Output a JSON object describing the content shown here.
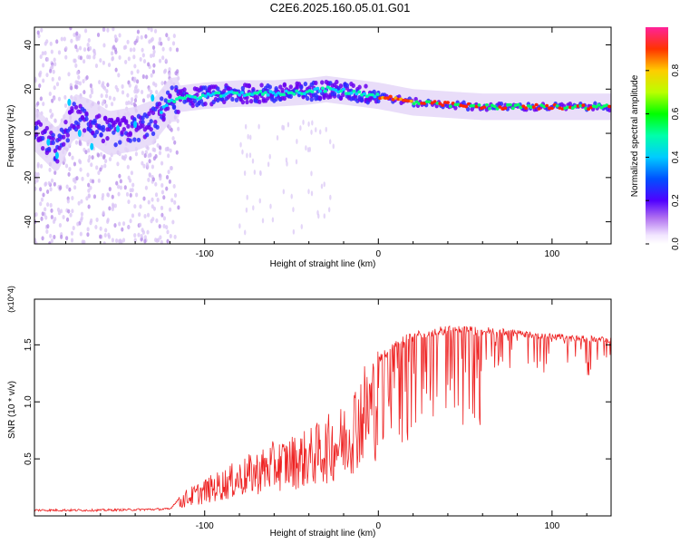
{
  "title": "C2E6.2025.160.05.01.G01",
  "chart_data": [
    {
      "type": "heatmap",
      "xlabel": "Height of straight line (km)",
      "ylabel": "Frequency (Hz)",
      "xlim": [
        -198,
        134
      ],
      "ylim": [
        -50,
        48
      ],
      "x_ticks": [
        -100,
        0,
        100
      ],
      "y_ticks": [
        -40,
        -20,
        0,
        20,
        40
      ],
      "colorbar": {
        "label": "Normalized spectral amplitude",
        "range": [
          0,
          1
        ],
        "ticks": [
          0.0,
          0.2,
          0.4,
          0.6,
          0.8
        ],
        "colors": [
          "#ffffff",
          "#ffffff",
          "#e6d8f5",
          "#c8aaee",
          "#8800ee",
          "#2200ff",
          "#00aaff",
          "#00ffcc",
          "#00ff00",
          "#ccff00",
          "#ffcc00",
          "#ff6600",
          "#ff0000",
          "#ff33aa"
        ]
      },
      "ridge": {
        "x": [
          -198,
          -185,
          -175,
          -165,
          -155,
          -140,
          -130,
          -120,
          -100,
          -80,
          -60,
          -40,
          -30,
          -20,
          -10,
          0,
          20,
          40,
          60,
          80,
          100,
          134
        ],
        "y": [
          2,
          -8,
          8,
          5,
          0,
          2,
          5,
          15,
          17,
          18,
          18,
          19,
          20,
          19,
          18,
          17,
          14,
          13,
          12,
          12,
          12,
          12
        ]
      }
    },
    {
      "type": "line",
      "xlabel": "Height of straight line (km)",
      "ylabel": "SNR (10 * v/v)",
      "y_multiplier": "(x10^4)",
      "xlim": [
        -198,
        134
      ],
      "ylim": [
        0,
        1.9
      ],
      "x_ticks": [
        -100,
        0,
        100
      ],
      "y_ticks": [
        0.5,
        1.0,
        1.5
      ],
      "color": "#ee2222",
      "envelope": {
        "x": [
          -198,
          -160,
          -120,
          -112,
          -100,
          -80,
          -60,
          -40,
          -20,
          -10,
          0,
          10,
          20,
          40,
          60,
          80,
          100,
          120,
          134
        ],
        "y": [
          0.05,
          0.05,
          0.06,
          0.2,
          0.3,
          0.45,
          0.6,
          0.7,
          0.9,
          1.2,
          1.4,
          1.55,
          1.62,
          1.67,
          1.66,
          1.63,
          1.6,
          1.58,
          1.57
        ]
      }
    }
  ]
}
